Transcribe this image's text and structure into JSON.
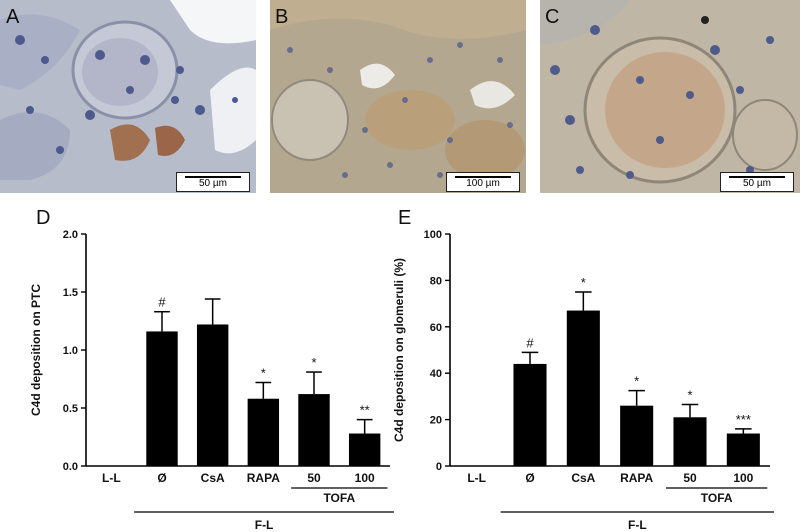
{
  "panels": [
    {
      "label": "A",
      "scale": "50 µm"
    },
    {
      "label": "B",
      "scale": "100 µm"
    },
    {
      "label": "C",
      "scale": "50 µm"
    }
  ],
  "chart_data": [
    {
      "panel": "D",
      "type": "bar",
      "categories": [
        "L-L",
        "Ø",
        "CsA",
        "RAPA",
        "50",
        "100"
      ],
      "values": [
        0,
        1.16,
        1.22,
        0.58,
        0.62,
        0.28
      ],
      "errors": [
        0,
        0.17,
        0.22,
        0.14,
        0.19,
        0.12
      ],
      "significance": [
        "",
        "#",
        "",
        "*",
        "*",
        "**"
      ],
      "ylabel": "C4d deposition on PTC",
      "ylim": [
        0,
        2.0
      ],
      "yticks": [
        "0.0",
        "0.5",
        "1.0",
        "1.5",
        "2.0"
      ],
      "tick_values": [
        0,
        0.5,
        1.0,
        1.5,
        2.0
      ],
      "group_labels": {
        "sub": "TOFA",
        "main": "F-L"
      }
    },
    {
      "panel": "E",
      "type": "bar",
      "categories": [
        "L-L",
        "Ø",
        "CsA",
        "RAPA",
        "50",
        "100"
      ],
      "values": [
        0,
        44,
        67,
        26,
        21,
        14
      ],
      "errors": [
        0,
        5,
        8,
        6.5,
        5.5,
        2
      ],
      "significance": [
        "",
        "#",
        "*",
        "*",
        "*",
        "***"
      ],
      "ylabel": "C4d deposition on glomeruli (%)",
      "ylim": [
        0,
        100
      ],
      "yticks": [
        "0",
        "20",
        "40",
        "60",
        "80",
        "100"
      ],
      "tick_values": [
        0,
        20,
        40,
        60,
        80,
        100
      ],
      "group_labels": {
        "sub": "TOFA",
        "main": "F-L"
      }
    }
  ]
}
